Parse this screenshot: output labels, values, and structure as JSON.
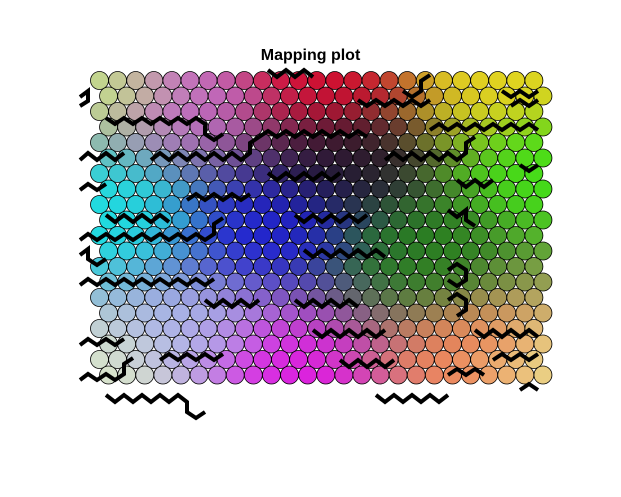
{
  "chart_data": {
    "type": "heatmap",
    "subtype": "self-organizing-map-hexagonal",
    "title": "Mapping plot",
    "grid": {
      "columns": 25,
      "rows": 20,
      "topology": "hexagonal"
    },
    "xlabel": "",
    "ylabel": "",
    "legend": "none",
    "cell_border_color": "#000000",
    "cluster_boundary_color": "#000000",
    "color_regions": [
      {
        "name": "red",
        "position": "top-center",
        "color": "#e0001a"
      },
      {
        "name": "yellow",
        "position": "top-right",
        "color": "#f0e020"
      },
      {
        "name": "lime",
        "position": "right",
        "color": "#40e020"
      },
      {
        "name": "green",
        "position": "center-right",
        "color": "#208010"
      },
      {
        "name": "cyan",
        "position": "left",
        "color": "#20e0e0"
      },
      {
        "name": "blue",
        "position": "center",
        "color": "#1010e0"
      },
      {
        "name": "magenta",
        "position": "bottom-center",
        "color": "#e010e0"
      },
      {
        "name": "dark",
        "position": "center",
        "color": "#100a20"
      },
      {
        "name": "light-corners",
        "position": "corners",
        "color": "#f0f0c0"
      }
    ]
  }
}
